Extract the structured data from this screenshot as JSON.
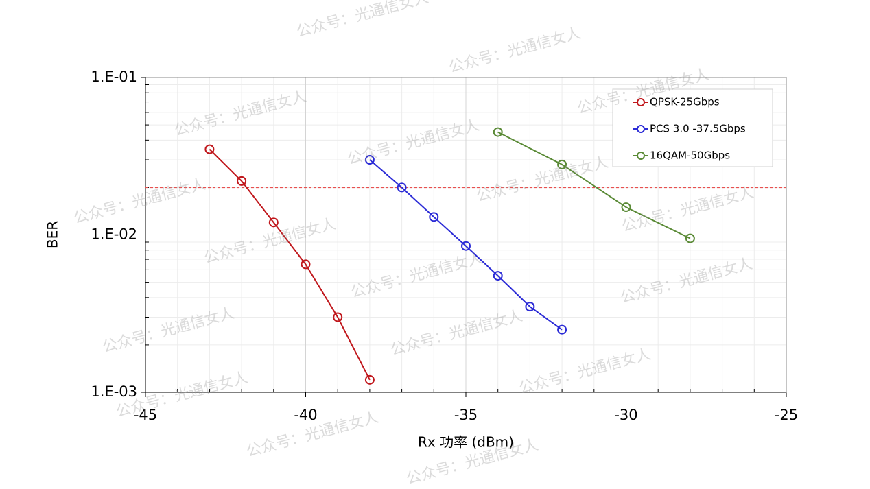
{
  "chart_data": {
    "type": "line",
    "x_label": "Rx 功率 (dBm)",
    "y_label": "BER",
    "xlim": [
      -45,
      -25
    ],
    "xticks": [
      -45,
      -40,
      -35,
      -30,
      -25
    ],
    "ylim": [
      0.001,
      0.1
    ],
    "log_y": true,
    "yticks": [
      {
        "value": 0.001,
        "label": "1.E-03"
      },
      {
        "value": 0.01,
        "label": "1.E-02"
      },
      {
        "value": 0.1,
        "label": "1.E-01"
      }
    ],
    "grid": true,
    "legend": "upper right",
    "threshold": {
      "value": 0.02,
      "color": "#e8504f"
    },
    "series": [
      {
        "name": "QPSK-25Gbps",
        "color": "#c0171c",
        "x": [
          -43,
          -42,
          -41,
          -40,
          -39,
          -38
        ],
        "values": [
          0.035,
          0.022,
          0.012,
          0.0065,
          0.003,
          0.0012
        ]
      },
      {
        "name": "PCS 3.0 -37.5Gbps",
        "color": "#2b2bd6",
        "x": [
          -38,
          -37,
          -36,
          -35,
          -34,
          -33,
          -32
        ],
        "values": [
          0.03,
          0.02,
          0.013,
          0.0085,
          0.0055,
          0.0035,
          0.0025
        ]
      },
      {
        "name": "16QAM-50Gbps",
        "color": "#5a8a36",
        "x": [
          -34,
          -32,
          -30,
          -28
        ],
        "values": [
          0.045,
          0.028,
          0.015,
          0.0095
        ]
      }
    ],
    "watermark": "公众号：光通信女人"
  }
}
